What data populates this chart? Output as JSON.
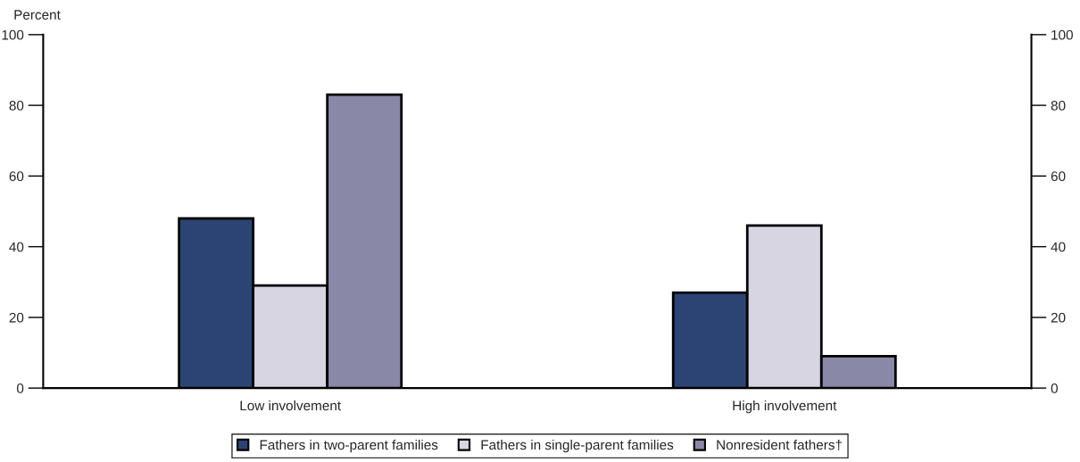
{
  "chart_data": {
    "type": "bar",
    "ylabel": "Percent",
    "categories": [
      "Low involvement",
      "High involvement"
    ],
    "series": [
      {
        "name": "Fathers in two-parent families",
        "color": "#2c4474",
        "values": [
          48,
          27
        ]
      },
      {
        "name": "Fathers in single-parent families",
        "color": "#d8d5e2",
        "values": [
          29,
          46
        ]
      },
      {
        "name": "Nonresident fathers†",
        "color": "#8989a7",
        "values": [
          83,
          9
        ]
      }
    ],
    "ylim": [
      0,
      100
    ],
    "yticks": [
      0,
      20,
      40,
      60,
      80,
      100
    ],
    "y2lim": [
      0,
      100
    ],
    "y2ticks": [
      0,
      20,
      40,
      60,
      80,
      100
    ],
    "grid": false,
    "legend": "bottom"
  }
}
